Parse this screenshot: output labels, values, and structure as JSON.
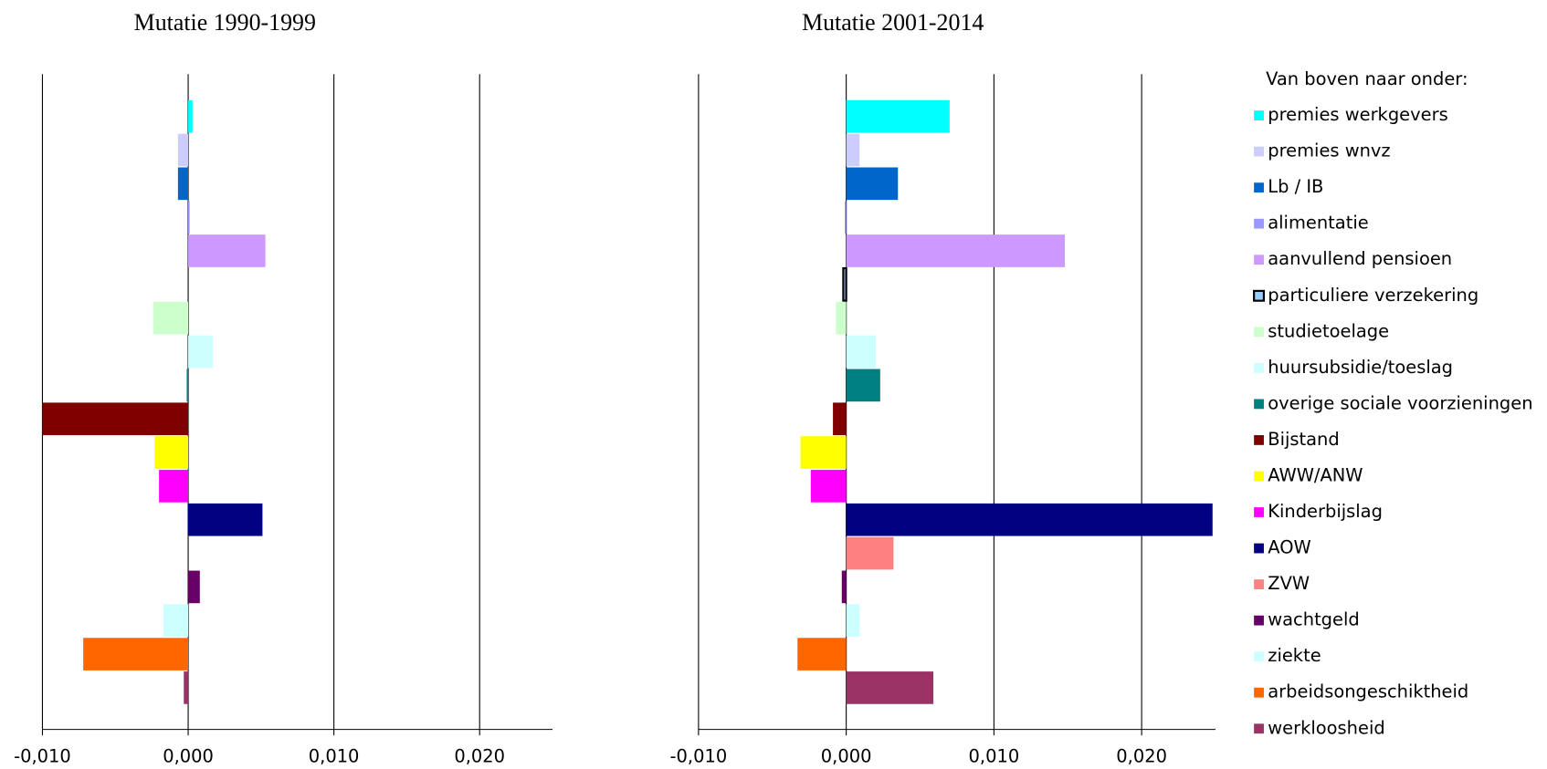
{
  "chart_data": [
    {
      "type": "bar",
      "orientation": "horizontal",
      "title": "Mutatie 1990-1999",
      "legend_title": "Van boven naar onder:",
      "categories": [
        "premies werkgevers",
        "premies wnvz",
        "Lb / IB",
        "alimentatie",
        "aanvullend pensioen",
        "particuliere verzekering",
        "studietoelage",
        "huursubsidie/toeslag",
        "overige sociale voorzieningen",
        "Bijstand",
        "AWW/ANW",
        "Kinderbijslag",
        "AOW",
        "ZVW",
        "wachtgeld",
        "ziekte",
        "arbeidsongeschiktheid",
        "werkloosheid"
      ],
      "colors": [
        "#00ffff",
        "#ccccff",
        "#0066cc",
        "#9999ff",
        "#cc99ff",
        "#99ccff",
        "#ccffcc",
        "#ccffff",
        "#008080",
        "#800000",
        "#ffff00",
        "#ff00ff",
        "#000080",
        "#ff8080",
        "#660066",
        "#ccffff",
        "#ff6600",
        "#993366"
      ],
      "values": [
        0.0003,
        -0.0007,
        -0.0007,
        0.0001,
        0.0053,
        0,
        -0.0024,
        0.0017,
        -0.0001,
        -0.01,
        -0.0023,
        -0.002,
        0.0051,
        0,
        0.0008,
        -0.0017,
        -0.0072,
        -0.0003
      ],
      "xlim": [
        -0.01,
        0.025
      ],
      "xticks": [
        {
          "value": -0.01,
          "label": "-0,010"
        },
        {
          "value": 0,
          "label": "0,000"
        },
        {
          "value": 0.01,
          "label": "0,010"
        },
        {
          "value": 0.02,
          "label": "0,020"
        }
      ]
    },
    {
      "type": "bar",
      "orientation": "horizontal",
      "title": "Mutatie 2001-2014",
      "values": [
        0.007,
        0.0009,
        0.0035,
        -0.0001,
        0.0148,
        -0.0002,
        -0.0007,
        0.002,
        0.0023,
        -0.0009,
        -0.0031,
        -0.0024,
        0.0248,
        0.0032,
        -0.0003,
        0.0009,
        -0.0033,
        0.0059
      ],
      "xlim": [
        -0.01,
        0.025
      ],
      "xticks": [
        {
          "value": -0.01,
          "label": "-0,010"
        },
        {
          "value": 0,
          "label": "0,000"
        },
        {
          "value": 0.01,
          "label": "0,010"
        },
        {
          "value": 0.02,
          "label": "0,020"
        }
      ]
    }
  ]
}
